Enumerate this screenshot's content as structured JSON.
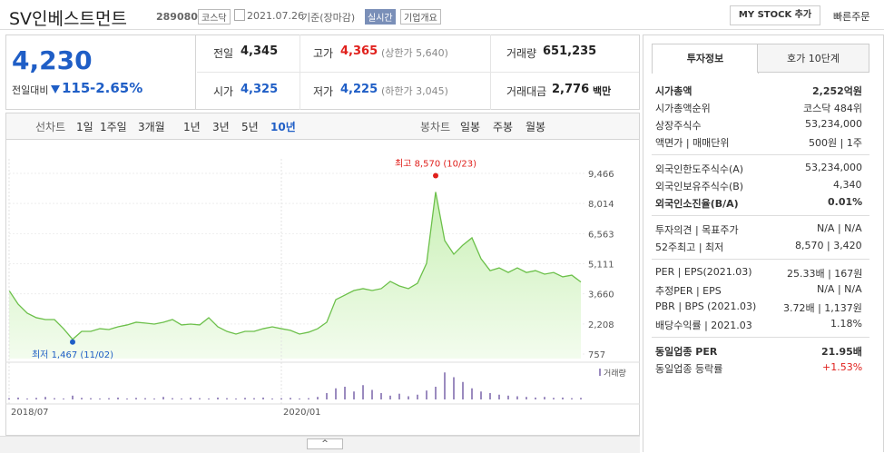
{
  "header": {
    "name": "SV인베스트먼트",
    "code": "289080",
    "market": "코스닥",
    "date": "2021.07.26",
    "basis": "기준(장마감)",
    "realtime": "실시간",
    "company": "기업개요",
    "mystock": "MY STOCK 추가",
    "quick_order": "빠른주문"
  },
  "quote": {
    "price": "4,230",
    "change_label": "전일대비",
    "change": "115",
    "change_rate": "-2.65%",
    "cells": [
      [
        "전일",
        "4,345",
        ""
      ],
      [
        "고가",
        "4,365",
        "(상한가 5,640)"
      ],
      [
        "거래량",
        "651,235",
        ""
      ],
      [
        "시가",
        "4,325",
        ""
      ],
      [
        "저가",
        "4,225",
        "(하한가 3,045)"
      ],
      [
        "거래대금",
        "2,776",
        "백만"
      ]
    ]
  },
  "tabs": {
    "line_label": "선차트",
    "line": [
      "1일",
      "1주일",
      "3개월",
      "1년",
      "3년",
      "5년",
      "10년"
    ],
    "candle_label": "봉차트",
    "candle": [
      "일봉",
      "주봉",
      "월봉"
    ]
  },
  "chart_data": [
    {
      "type": "line",
      "categories": [
        "2018/07",
        null,
        null,
        null,
        null,
        null,
        null,
        null,
        null,
        null,
        null,
        null,
        null,
        null,
        null,
        null,
        null,
        null,
        null,
        null,
        null,
        null,
        null,
        null,
        null,
        null,
        null,
        null,
        null,
        null,
        "2020/01",
        null,
        null,
        null,
        null,
        null,
        null,
        null,
        null,
        null,
        null,
        null,
        null,
        null,
        null,
        null,
        null,
        null,
        null,
        null,
        null,
        null,
        null,
        null,
        null,
        null,
        null,
        null,
        null,
        null,
        null,
        null,
        null,
        null
      ],
      "values": [
        3820,
        3160,
        2730,
        2510,
        2420,
        2420,
        1980,
        1467,
        1850,
        1850,
        1980,
        1940,
        2070,
        2160,
        2290,
        2250,
        2200,
        2290,
        2420,
        2160,
        2200,
        2160,
        2510,
        2070,
        1850,
        1720,
        1850,
        1850,
        1980,
        2070,
        1980,
        1900,
        1720,
        1810,
        1980,
        2290,
        3380,
        3600,
        3820,
        3910,
        3820,
        3910,
        4260,
        4040,
        3910,
        4170,
        5130,
        8570,
        6230,
        5570,
        6010,
        6360,
        5350,
        4780,
        4910,
        4690,
        4910,
        4690,
        4780,
        4610,
        4690,
        4480,
        4560,
        4230
      ],
      "color": "#6cc04a",
      "ylim": [
        757,
        9466
      ],
      "yticks": [
        757,
        {
          "value": 2208,
          "label": "2,208"
        },
        {
          "value": 3660,
          "label": "3,660"
        },
        {
          "value": 5111,
          "label": "5,111"
        },
        {
          "value": 6563,
          "label": "6,563"
        },
        {
          "value": 8014,
          "label": "8,014"
        },
        {
          "value": 9466,
          "label": "9,466"
        }
      ],
      "grid": true,
      "annotations": {
        "high": "최고 8,570 (10/23)",
        "low": "최저 1,467 (11/02)"
      }
    },
    {
      "type": "bar",
      "name": "거래량",
      "color": "#9b8bbf",
      "ylim": [
        0,
        100
      ],
      "values": [
        4,
        6,
        3,
        5,
        8,
        4,
        3,
        12,
        5,
        4,
        3,
        4,
        6,
        3,
        5,
        4,
        3,
        8,
        4,
        3,
        5,
        4,
        3,
        6,
        4,
        3,
        5,
        4,
        6,
        3,
        4,
        5,
        3,
        4,
        8,
        20,
        35,
        40,
        25,
        45,
        30,
        20,
        12,
        18,
        10,
        15,
        28,
        40,
        85,
        70,
        55,
        35,
        25,
        20,
        15,
        12,
        10,
        8,
        6,
        8,
        5,
        6,
        4,
        5
      ]
    }
  ],
  "info": {
    "tabs": [
      "투자정보",
      "호가 10단계"
    ],
    "sections": [
      [
        [
          "시가총액",
          "2,252억원"
        ],
        [
          "시가총액순위",
          "코스닥 484위"
        ],
        [
          "상장주식수",
          "53,234,000"
        ],
        [
          "액면가 | 매매단위",
          "500원 | 1주"
        ]
      ],
      [
        [
          "외국인한도주식수(A)",
          "53,234,000"
        ],
        [
          "외국인보유주식수(B)",
          "4,340"
        ],
        [
          "외국인소진율(B/A)",
          "0.01%"
        ]
      ],
      [
        [
          "투자의견 | 목표주가",
          "N/A | N/A"
        ],
        [
          "52주최고 | 최저",
          "8,570 | 3,420"
        ]
      ],
      [
        [
          "PER | EPS(2021.03)",
          "25.33배 | 167원"
        ],
        [
          "추정PER | EPS",
          "N/A | N/A"
        ],
        [
          "PBR | BPS (2021.03)",
          "3.72배 | 1,137원"
        ],
        [
          "배당수익률 | 2021.03",
          "1.18%"
        ]
      ],
      [
        [
          "동일업종 PER",
          "21.95배"
        ],
        [
          "동일업종 등락률",
          "+1.53%"
        ]
      ]
    ]
  }
}
